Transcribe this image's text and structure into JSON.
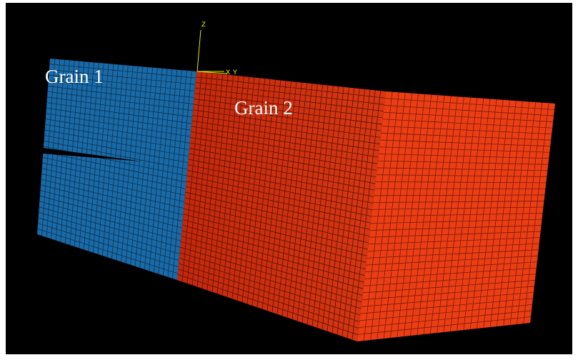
{
  "labels": {
    "grain_1": "Grain 1",
    "grain_2": "Grain 2"
  },
  "triad": {
    "z": "Z",
    "x": "X",
    "y": "Y"
  }
}
